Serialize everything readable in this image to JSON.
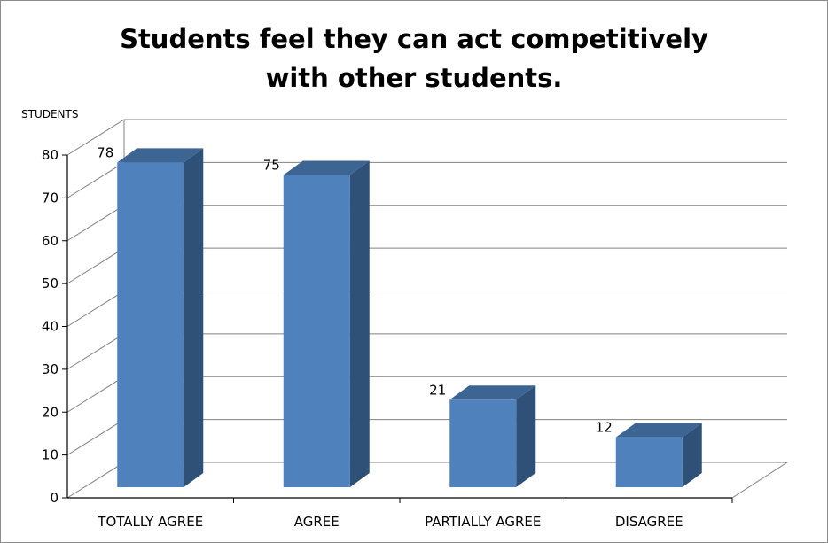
{
  "chart_data": {
    "type": "bar",
    "title_lines": [
      "Students feel they can act competitively",
      "with other students."
    ],
    "ylabel": "STUDENTS",
    "xlabel": "",
    "categories": [
      "TOTALLY AGREE",
      "AGREE",
      "PARTIALLY AGREE",
      "DISAGREE"
    ],
    "values": [
      78,
      75,
      21,
      12
    ],
    "data_labels": [
      "78",
      "75",
      "21",
      "12"
    ],
    "ylim": [
      0,
      80
    ],
    "yticks": [
      0,
      10,
      20,
      30,
      40,
      50,
      60,
      70,
      80
    ],
    "grid": true,
    "legend": "none",
    "style": "3d-column",
    "colors": {
      "bar_front": "#4f81bd",
      "bar_side": "#2f5178",
      "bar_top": "#3d6593",
      "grid": "#808080"
    }
  }
}
